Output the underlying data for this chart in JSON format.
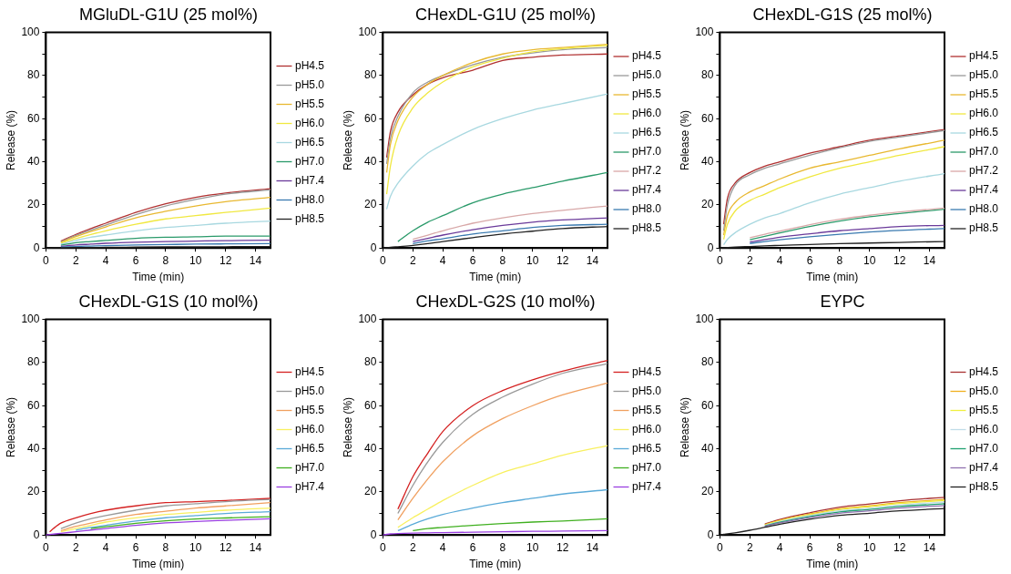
{
  "chart_data": [
    {
      "type": "line",
      "title": "MGluDL-G1U (25 mol%)",
      "xlabel": "Time (min)",
      "ylabel": "Release (%)",
      "legend": "right",
      "marker": "none",
      "grid": false,
      "xlim": [
        0,
        15
      ],
      "xticks": [
        0,
        2,
        4,
        6,
        8,
        10,
        12,
        14
      ],
      "ylim": [
        0,
        100
      ],
      "yticks": [
        0,
        {
          "value": 10,
          "label": null
        },
        20,
        {
          "value": 30,
          "label": null
        },
        40,
        {
          "value": 50,
          "label": null
        },
        60,
        {
          "value": 70,
          "label": null
        },
        80,
        {
          "value": 90,
          "label": null
        },
        100
      ],
      "x": [
        0,
        0.25,
        0.5,
        1,
        2,
        3,
        4,
        6,
        8,
        10,
        12,
        15
      ],
      "series": [
        {
          "name": "pH4.5",
          "color": "#b03030",
          "values": [
            null,
            null,
            null,
            3.2,
            6.3,
            9,
            11.5,
            16.5,
            20.5,
            23.5,
            25.5,
            27.5
          ]
        },
        {
          "name": "pH5.0",
          "color": "#999999",
          "values": [
            null,
            null,
            null,
            2.9,
            5.8,
            8.3,
            10.6,
            15.5,
            19.5,
            22.5,
            25,
            27
          ]
        },
        {
          "name": "pH5.5",
          "color": "#e8b830",
          "values": [
            null,
            null,
            null,
            2.6,
            5.3,
            7.6,
            9.8,
            14,
            17,
            19.5,
            21.5,
            23.5
          ]
        },
        {
          "name": "pH6.0",
          "color": "#f0e840",
          "values": [
            null,
            null,
            null,
            2.2,
            4.4,
            6.3,
            8,
            11,
            13.5,
            15,
            16.5,
            18.5
          ]
        },
        {
          "name": "pH6.5",
          "color": "#a8d8e0",
          "values": [
            null,
            null,
            null,
            1.8,
            3.5,
            5,
            6,
            8,
            9.5,
            10.5,
            11.5,
            12.5
          ]
        },
        {
          "name": "pH7.0",
          "color": "#2a9a6a",
          "values": [
            null,
            null,
            null,
            1.3,
            2.5,
            3,
            3.5,
            4.5,
            5,
            5.2,
            5.5,
            5.5
          ]
        },
        {
          "name": "pH7.4",
          "color": "#6a3a9a",
          "values": [
            null,
            null,
            null,
            0.8,
            1.4,
            1.8,
            2.2,
            2.7,
            3,
            3.2,
            3.4,
            3.6
          ]
        },
        {
          "name": "pH8.0",
          "color": "#3a7ab0",
          "values": [
            null,
            null,
            null,
            0.4,
            0.7,
            0.9,
            1.1,
            1.4,
            1.6,
            1.8,
            1.9,
            2
          ]
        },
        {
          "name": "pH8.5",
          "color": "#222222",
          "values": [
            0,
            0,
            0.1,
            0.1,
            0.2,
            0.2,
            0.3,
            0.4,
            0.5,
            0.5,
            0.6,
            0.7
          ]
        }
      ]
    },
    {
      "type": "line",
      "title": "CHexDL-G1U (25 mol%)",
      "xlabel": "Time (min)",
      "ylabel": "Release (%)",
      "legend": "right",
      "marker": "none",
      "grid": false,
      "xlim": [
        0,
        15
      ],
      "xticks": [
        0,
        2,
        4,
        6,
        8,
        10,
        12,
        14
      ],
      "ylim": [
        0,
        100
      ],
      "yticks": [
        0,
        {
          "value": 10,
          "label": null
        },
        20,
        {
          "value": 30,
          "label": null
        },
        40,
        {
          "value": 50,
          "label": null
        },
        60,
        {
          "value": 70,
          "label": null
        },
        80,
        {
          "value": 90,
          "label": null
        },
        100
      ],
      "x": [
        0,
        0.25,
        0.5,
        1,
        2,
        3,
        4,
        6,
        8,
        10,
        12,
        15
      ],
      "series": [
        {
          "name": "pH4.5",
          "color": "#b03030",
          "values": [
            null,
            42,
            54,
            63,
            71,
            76,
            79,
            82.5,
            87,
            88.5,
            89.5,
            90
          ]
        },
        {
          "name": "pH5.0",
          "color": "#999999",
          "values": [
            null,
            39,
            51,
            61,
            72,
            77,
            80,
            85,
            88.5,
            90.5,
            92,
            93
          ]
        },
        {
          "name": "pH5.5",
          "color": "#e8b830",
          "values": [
            null,
            35,
            48,
            59,
            70,
            76,
            80,
            86,
            90,
            92,
            93,
            94.5
          ]
        },
        {
          "name": "pH6.0",
          "color": "#f0e840",
          "values": [
            null,
            25,
            38,
            52,
            65,
            72,
            77,
            84,
            88,
            91,
            92.5,
            94
          ]
        },
        {
          "name": "pH6.5",
          "color": "#a8d8e0",
          "values": [
            null,
            18,
            24,
            30,
            38,
            44,
            48,
            55,
            60,
            64,
            67,
            71.5
          ]
        },
        {
          "name": "pH7.0",
          "color": "#2a9a6a",
          "values": [
            null,
            null,
            null,
            3,
            8,
            12,
            15,
            21,
            25,
            28,
            31,
            35
          ]
        },
        {
          "name": "pH7.2",
          "color": "#d8a8a8",
          "values": [
            null,
            null,
            null,
            null,
            4,
            6,
            8,
            11.5,
            14,
            16,
            17.5,
            19.5
          ]
        },
        {
          "name": "pH7.4",
          "color": "#6a3a9a",
          "values": [
            null,
            null,
            null,
            null,
            3,
            4.5,
            6,
            8.5,
            10.5,
            12,
            13,
            14
          ]
        },
        {
          "name": "pH8.0",
          "color": "#3a7ab0",
          "values": [
            null,
            null,
            null,
            null,
            2,
            3.3,
            4.3,
            6.5,
            8,
            9.5,
            10.5,
            11
          ]
        },
        {
          "name": "pH8.5",
          "color": "#222222",
          "values": [
            0,
            0.1,
            0.3,
            0.6,
            1.2,
            2,
            3,
            4.8,
            6.5,
            7.8,
            9,
            10
          ]
        }
      ]
    },
    {
      "type": "line",
      "title": "CHexDL-G1S (25 mol%)",
      "xlabel": "Time (min)",
      "ylabel": "Release (%)",
      "legend": "right",
      "marker": "none",
      "grid": false,
      "xlim": [
        0,
        15
      ],
      "xticks": [
        0,
        2,
        4,
        6,
        8,
        10,
        12,
        14
      ],
      "ylim": [
        0,
        100
      ],
      "yticks": [
        0,
        {
          "value": 10,
          "label": null
        },
        20,
        {
          "value": 30,
          "label": null
        },
        40,
        {
          "value": 50,
          "label": null
        },
        60,
        {
          "value": 70,
          "label": null
        },
        80,
        {
          "value": 90,
          "label": null
        },
        100
      ],
      "x": [
        0,
        0.25,
        0.5,
        1,
        2,
        3,
        4,
        6,
        8,
        10,
        12,
        15
      ],
      "series": [
        {
          "name": "pH4.5",
          "color": "#b03030",
          "values": [
            null,
            11,
            23,
            30,
            35,
            38,
            40,
            44,
            47,
            50,
            52,
            55
          ]
        },
        {
          "name": "pH5.0",
          "color": "#999999",
          "values": [
            null,
            8,
            20,
            29,
            34,
            37,
            39,
            43,
            46.5,
            49.5,
            51.5,
            54.5
          ]
        },
        {
          "name": "pH5.5",
          "color": "#e8b830",
          "values": [
            null,
            6,
            15,
            21,
            26,
            29,
            32,
            37,
            40,
            43,
            46,
            50
          ]
        },
        {
          "name": "pH6.0",
          "color": "#f0e840",
          "values": [
            null,
            4,
            11,
            17,
            22,
            25,
            28,
            33,
            37,
            40,
            43,
            47
          ]
        },
        {
          "name": "pH6.5",
          "color": "#a8d8e0",
          "values": [
            null,
            1.5,
            4,
            7,
            11,
            14,
            16,
            21,
            25,
            28,
            31,
            34.5
          ]
        },
        {
          "name": "pH7.0",
          "color": "#2a9a6a",
          "values": [
            null,
            null,
            null,
            null,
            3.8,
            5.4,
            7,
            10,
            12.5,
            14.5,
            16,
            18
          ]
        },
        {
          "name": "pH7.2",
          "color": "#d8a8a8",
          "values": [
            null,
            null,
            null,
            null,
            4.8,
            6.4,
            7.8,
            10.8,
            13.3,
            15.2,
            16.7,
            18.5
          ]
        },
        {
          "name": "pH7.4",
          "color": "#6a3a9a",
          "values": [
            null,
            null,
            null,
            null,
            2.8,
            3.9,
            5,
            6.6,
            8,
            9,
            10,
            10.5
          ]
        },
        {
          "name": "pH8.0",
          "color": "#3a7ab0",
          "values": [
            null,
            null,
            null,
            null,
            2.1,
            3,
            3.8,
            5.2,
            6.4,
            7.4,
            8.2,
            9
          ]
        },
        {
          "name": "pH8.5",
          "color": "#222222",
          "values": [
            0,
            0.1,
            0.2,
            0.4,
            0.7,
            1,
            1.2,
            1.6,
            2,
            2.3,
            2.6,
            3
          ]
        }
      ]
    },
    {
      "type": "line",
      "title": "CHexDL-G1S (10 mol%)",
      "xlabel": "Time (min)",
      "ylabel": "Release (%)",
      "legend": "right",
      "marker": "none",
      "grid": false,
      "xlim": [
        0,
        15
      ],
      "xticks": [
        0,
        2,
        4,
        6,
        8,
        10,
        12,
        14
      ],
      "ylim": [
        0,
        100
      ],
      "yticks": [
        0,
        {
          "value": 10,
          "label": null
        },
        20,
        {
          "value": 30,
          "label": null
        },
        40,
        {
          "value": 50,
          "label": null
        },
        60,
        {
          "value": 70,
          "label": null
        },
        80,
        {
          "value": 90,
          "label": null
        },
        100
      ],
      "x": [
        0,
        0.25,
        0.5,
        1,
        2,
        3,
        4,
        6,
        8,
        10,
        12,
        15
      ],
      "series": [
        {
          "name": "pH4.5",
          "color": "#d42020",
          "values": [
            null,
            1.5,
            3,
            5.5,
            8,
            10,
            11.5,
            13.5,
            15,
            15.5,
            16,
            17
          ]
        },
        {
          "name": "pH5.0",
          "color": "#999999",
          "values": [
            null,
            null,
            null,
            3,
            5.5,
            7.5,
            9,
            11.5,
            13.5,
            14.5,
            15.5,
            16.5
          ]
        },
        {
          "name": "pH5.5",
          "color": "#f0a060",
          "values": [
            null,
            null,
            null,
            2,
            4,
            5.5,
            7,
            9.5,
            11,
            12.5,
            13.5,
            15
          ]
        },
        {
          "name": "pH6.0",
          "color": "#f8f060",
          "values": [
            null,
            null,
            null,
            1.5,
            3,
            4.5,
            6,
            8,
            9.5,
            10.5,
            11.5,
            12.5
          ]
        },
        {
          "name": "pH6.5",
          "color": "#5aaad8",
          "values": [
            null,
            null,
            null,
            null,
            2.2,
            3.5,
            4.5,
            6.5,
            8,
            9,
            10,
            10.8
          ]
        },
        {
          "name": "pH7.0",
          "color": "#40b020",
          "values": [
            null,
            null,
            null,
            null,
            null,
            3,
            3.8,
            5.4,
            6.6,
            7.4,
            7.9,
            8.5
          ]
        },
        {
          "name": "pH7.4",
          "color": "#9a40e0",
          "values": [
            0,
            0.2,
            0.4,
            0.8,
            1.5,
            2.3,
            3,
            4.5,
            5.6,
            6.3,
            6.8,
            7.5
          ]
        }
      ]
    },
    {
      "type": "line",
      "title": "CHexDL-G2S (10 mol%)",
      "xlabel": "Time (min)",
      "ylabel": "Release (%)",
      "legend": "right",
      "marker": "none",
      "grid": false,
      "xlim": [
        0,
        15
      ],
      "xticks": [
        0,
        2,
        4,
        6,
        8,
        10,
        12,
        14
      ],
      "ylim": [
        0,
        100
      ],
      "yticks": [
        0,
        {
          "value": 10,
          "label": null
        },
        20,
        {
          "value": 30,
          "label": null
        },
        40,
        {
          "value": 50,
          "label": null
        },
        60,
        {
          "value": 70,
          "label": null
        },
        80,
        {
          "value": 90,
          "label": null
        },
        100
      ],
      "x": [
        0,
        0.25,
        0.5,
        1,
        2,
        3,
        4,
        6,
        8,
        10,
        12,
        15
      ],
      "series": [
        {
          "name": "pH4.5",
          "color": "#d42020",
          "values": [
            null,
            null,
            null,
            12,
            27,
            38,
            48,
            60,
            67,
            72,
            76,
            81
          ]
        },
        {
          "name": "pH5.0",
          "color": "#999999",
          "values": [
            null,
            null,
            null,
            10,
            23,
            34,
            43,
            56,
            64,
            70,
            75,
            79.5
          ]
        },
        {
          "name": "pH5.5",
          "color": "#f0a060",
          "values": [
            null,
            null,
            null,
            7,
            17,
            26,
            34,
            46,
            54,
            60,
            65,
            70.5
          ]
        },
        {
          "name": "pH6.0",
          "color": "#f8f060",
          "values": [
            null,
            null,
            null,
            3.5,
            8,
            12,
            16,
            23,
            29,
            33,
            37,
            41.5
          ]
        },
        {
          "name": "pH6.5",
          "color": "#5aaad8",
          "values": [
            null,
            null,
            null,
            2,
            5,
            7.5,
            9.5,
            12.5,
            15,
            17,
            19,
            21
          ]
        },
        {
          "name": "pH7.0",
          "color": "#40b020",
          "values": [
            null,
            null,
            null,
            null,
            2,
            3,
            3.5,
            4.5,
            5.3,
            6,
            6.5,
            7.5
          ]
        },
        {
          "name": "pH7.4",
          "color": "#9a40e0",
          "values": [
            0,
            0.3,
            0.5,
            0.7,
            0.9,
            1,
            1.1,
            1.3,
            1.5,
            1.7,
            1.8,
            2
          ]
        }
      ]
    },
    {
      "type": "line",
      "title": "EYPC",
      "xlabel": "Time (min)",
      "ylabel": "Release (%)",
      "legend": "right",
      "marker": "none",
      "grid": false,
      "xlim": [
        0,
        15
      ],
      "xticks": [
        0,
        2,
        4,
        6,
        8,
        10,
        12,
        14
      ],
      "ylim": [
        0,
        100
      ],
      "yticks": [
        0,
        {
          "value": 10,
          "label": null
        },
        20,
        {
          "value": 30,
          "label": null
        },
        40,
        {
          "value": 50,
          "label": null
        },
        60,
        {
          "value": 70,
          "label": null
        },
        80,
        {
          "value": 90,
          "label": null
        },
        100
      ],
      "x": [
        0,
        0.25,
        0.5,
        1,
        2,
        3,
        4,
        6,
        8,
        10,
        12,
        15
      ],
      "series": [
        {
          "name": "pH4.5",
          "color": "#a83030",
          "values": [
            null,
            null,
            null,
            null,
            null,
            5.1,
            7.2,
            10.3,
            12.9,
            14.4,
            15.9,
            17.5
          ]
        },
        {
          "name": "pH5.0",
          "color": "#f0b020",
          "values": [
            null,
            null,
            null,
            null,
            null,
            4.8,
            6.8,
            9.7,
            12.2,
            13.5,
            15,
            16.5
          ]
        },
        {
          "name": "pH5.5",
          "color": "#f0f040",
          "values": [
            null,
            null,
            null,
            null,
            null,
            4.6,
            6.6,
            9.4,
            11.8,
            13.1,
            14.6,
            16
          ]
        },
        {
          "name": "pH6.0",
          "color": "#c0dce8",
          "values": [
            null,
            null,
            null,
            null,
            null,
            4.4,
            6.3,
            9,
            11.3,
            12.5,
            13.9,
            15.3
          ]
        },
        {
          "name": "pH7.0",
          "color": "#20a070",
          "values": [
            null,
            null,
            null,
            null,
            null,
            4.2,
            5.9,
            8.6,
            10.7,
            11.9,
            13.2,
            14.5
          ]
        },
        {
          "name": "pH7.4",
          "color": "#9070b0",
          "values": [
            null,
            null,
            null,
            null,
            null,
            4,
            5.6,
            8.1,
            10.1,
            11.2,
            12.5,
            13.7
          ]
        },
        {
          "name": "pH8.5",
          "color": "#222222",
          "values": [
            0,
            0.3,
            0.5,
            1,
            2.2,
            3.6,
            5,
            7.3,
            9.1,
            10.1,
            11.2,
            12.3
          ]
        }
      ]
    }
  ]
}
